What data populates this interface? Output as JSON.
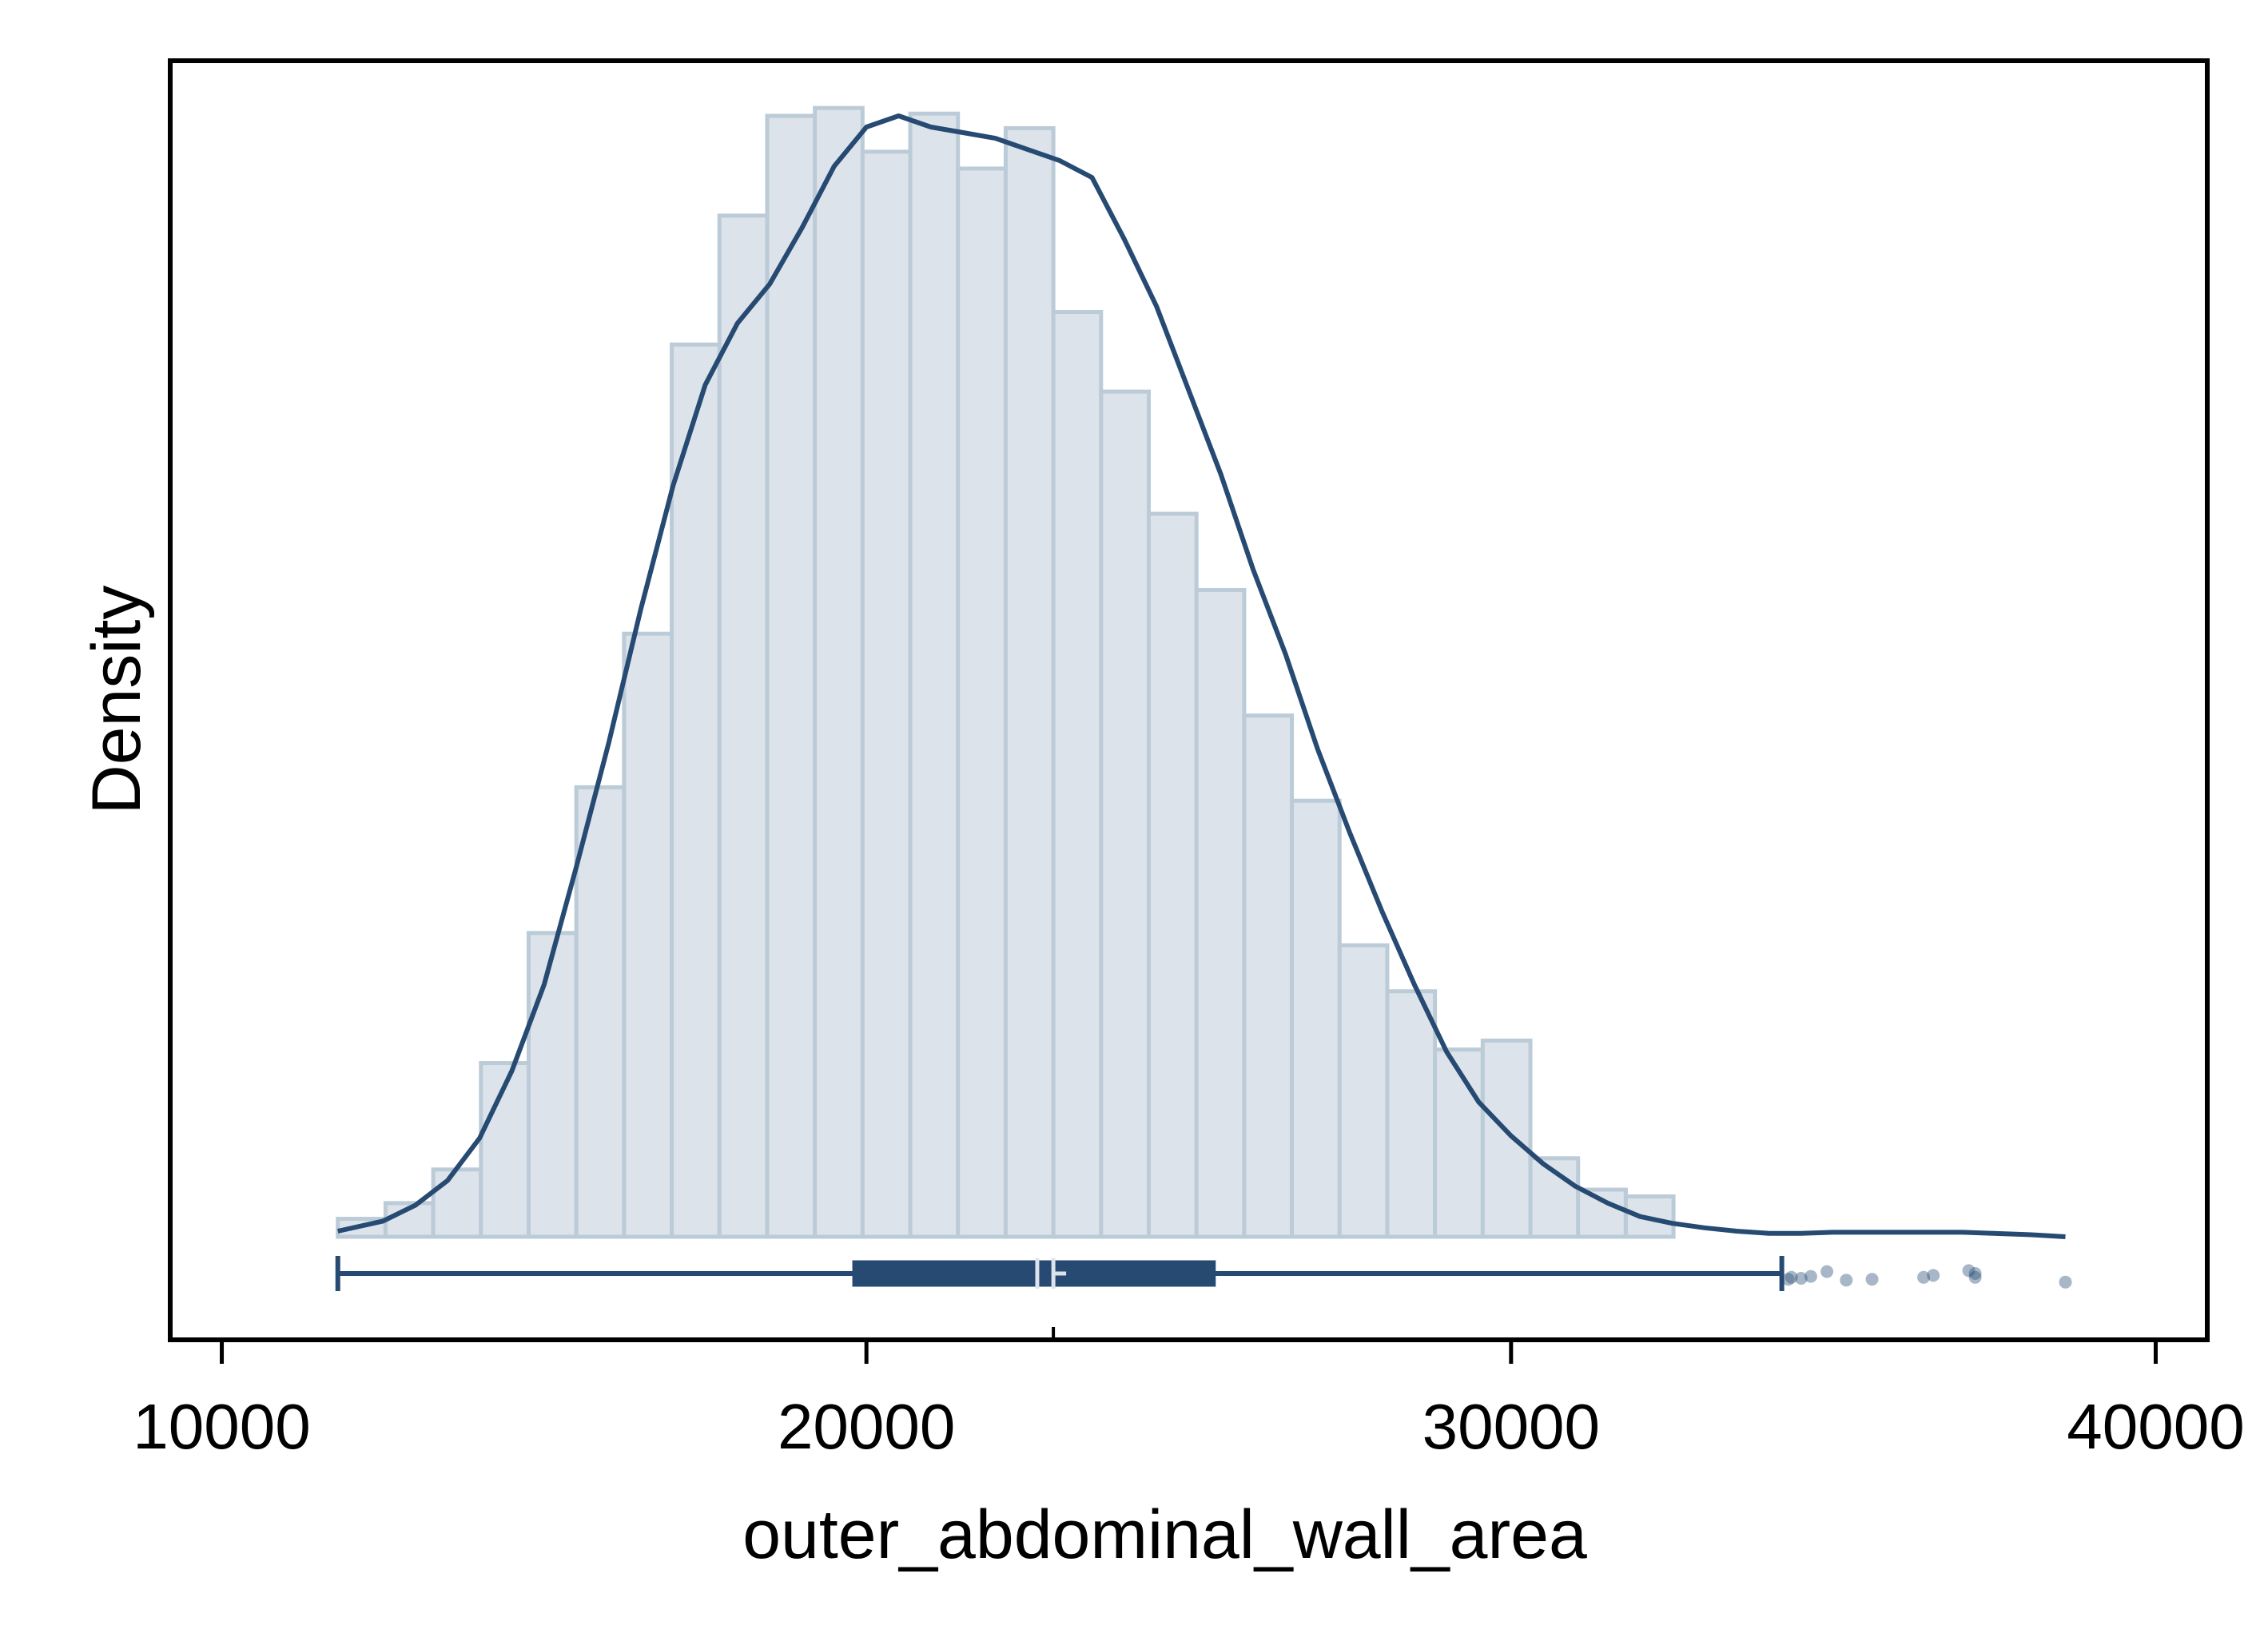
{
  "chart_data": {
    "type": "histogram",
    "xlabel": "outer_abdominal_wall_area",
    "ylabel": "Density",
    "xlim": [
      9200,
      40800
    ],
    "x_ticks": [
      10000,
      20000,
      30000,
      40000
    ],
    "y_ticks_shown": false,
    "grid": false,
    "legend": "none",
    "colors": {
      "bar_fill": "#dce3ea",
      "bar_stroke": "#bccbd8",
      "line": "#264a72",
      "box": "#264a72",
      "median_marker": "#dce3ea"
    },
    "histogram": {
      "bin_start": 11800,
      "bin_width": 740,
      "relative_heights": [
        0.016,
        0.03,
        0.06,
        0.155,
        0.271,
        0.401,
        0.538,
        0.796,
        0.911,
        1.0,
        1.007,
        0.968,
        1.002,
        0.953,
        0.989,
        0.825,
        0.754,
        0.645,
        0.577,
        0.465,
        0.389,
        0.26,
        0.219,
        0.167,
        0.175,
        0.07,
        0.042,
        0.036
      ]
    },
    "density_curve": {
      "x": [
        11800,
        12500,
        13000,
        13500,
        14000,
        14500,
        15000,
        15500,
        16000,
        16500,
        17000,
        17500,
        18000,
        18500,
        19000,
        19500,
        20000,
        20500,
        21000,
        21500,
        22000,
        22500,
        23000,
        23500,
        24000,
        24500,
        25000,
        25500,
        26000,
        26500,
        27000,
        27500,
        28000,
        28500,
        29000,
        29500,
        30000,
        30500,
        31000,
        31500,
        32000,
        32500,
        33000,
        33500,
        34000,
        34500,
        35000,
        35500,
        36000,
        37000,
        38000,
        38600
      ],
      "y": [
        0.005,
        0.014,
        0.028,
        0.05,
        0.088,
        0.148,
        0.225,
        0.33,
        0.44,
        0.56,
        0.67,
        0.76,
        0.815,
        0.85,
        0.9,
        0.955,
        0.99,
        1.0,
        0.99,
        0.985,
        0.98,
        0.97,
        0.96,
        0.945,
        0.89,
        0.83,
        0.755,
        0.68,
        0.595,
        0.52,
        0.435,
        0.36,
        0.29,
        0.225,
        0.165,
        0.12,
        0.09,
        0.065,
        0.045,
        0.03,
        0.018,
        0.012,
        0.008,
        0.005,
        0.003,
        0.003,
        0.004,
        0.004,
        0.004,
        0.004,
        0.002,
        0.0
      ]
    },
    "boxplot": {
      "whisker_low": 11800,
      "q1": 19800,
      "median": 22650,
      "mean": 22900,
      "q3": 25400,
      "whisker_high": 34200,
      "outliers": [
        34300,
        34350,
        34500,
        34650,
        34900,
        35200,
        35600,
        36400,
        36550,
        37100,
        37200,
        37200,
        38600
      ],
      "outlier_offsets": [
        0.6,
        0.4,
        0.5,
        0.3,
        -0.2,
        0.7,
        0.6,
        0.4,
        0.2,
        -0.3,
        0.4,
        0.0,
        0.9
      ]
    }
  }
}
